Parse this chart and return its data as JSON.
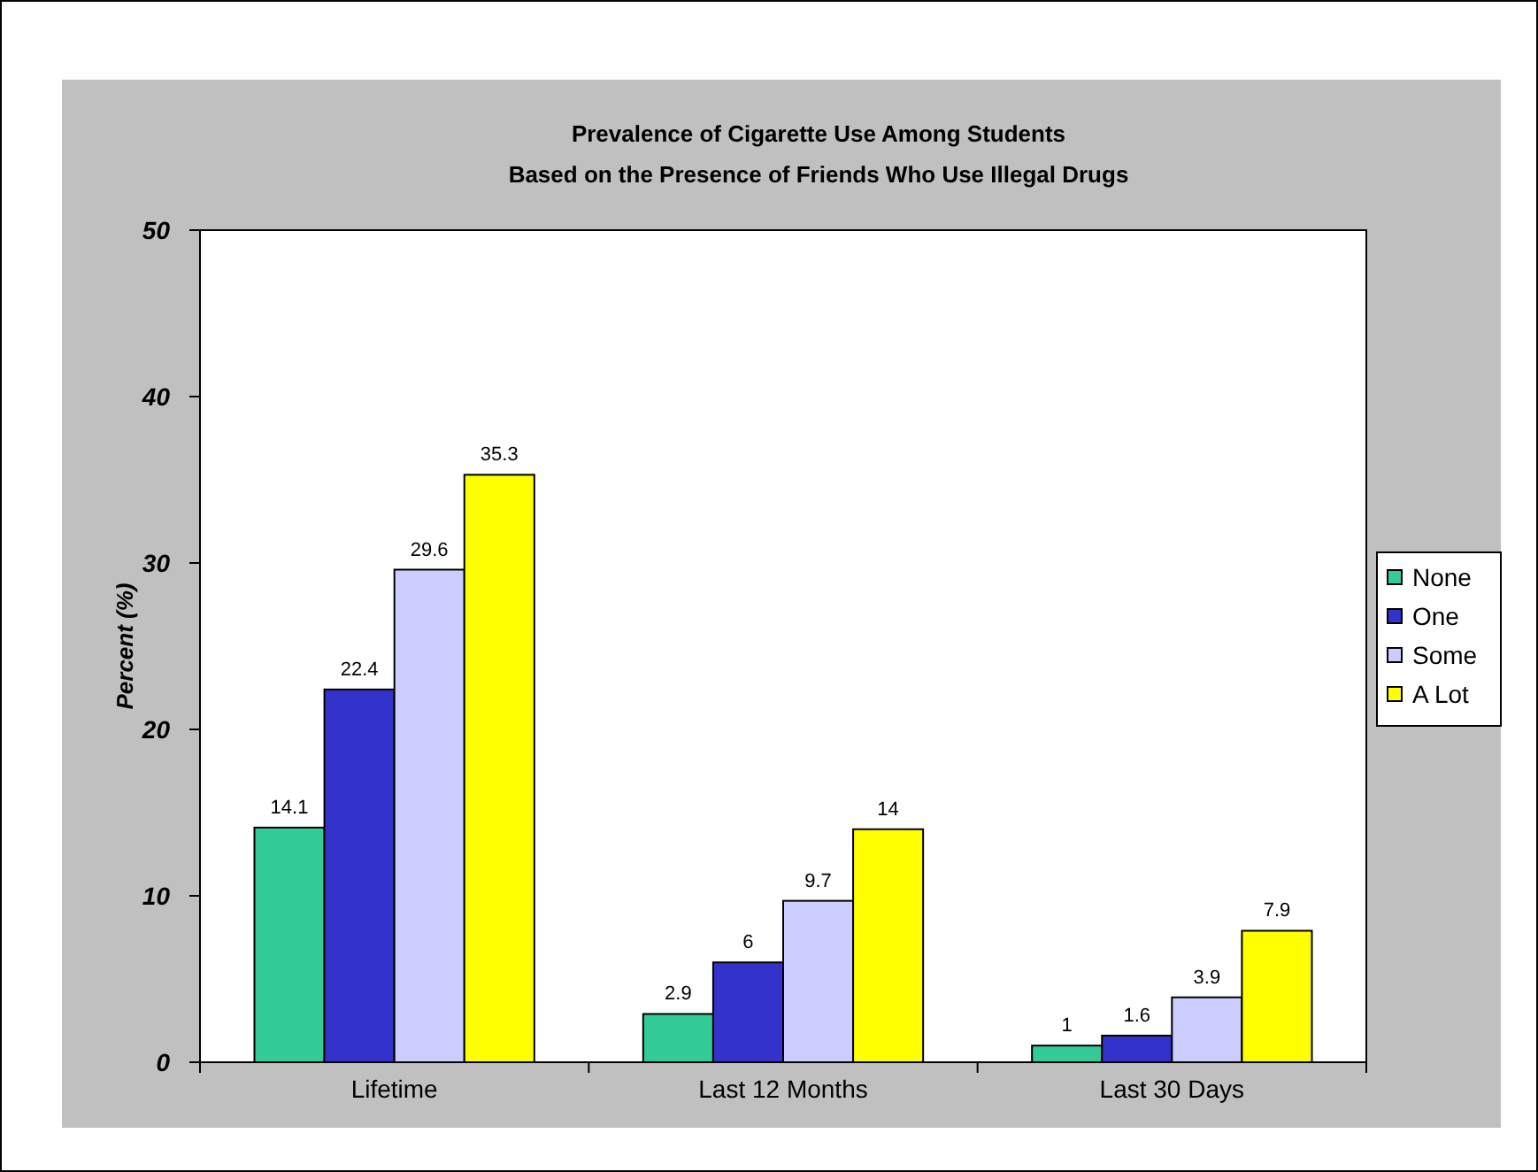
{
  "chart_data": {
    "type": "bar",
    "title": "Prevalence of Cigarette Use Among Students\nBased on the Presence of Friends Who Use Illegal Drugs",
    "ylabel": "Percent (%)",
    "categories": [
      "Lifetime",
      "Last 12 Months",
      "Last 30 Days"
    ],
    "series": [
      {
        "name": "None",
        "color": "#33cc99",
        "values": [
          14.1,
          2.9,
          1
        ]
      },
      {
        "name": "One",
        "color": "#3333cc",
        "values": [
          22.4,
          6,
          1.6
        ]
      },
      {
        "name": "Some",
        "color": "#ccccff",
        "values": [
          29.6,
          9.7,
          3.9
        ]
      },
      {
        "name": "A Lot",
        "color": "#ffff00",
        "values": [
          35.3,
          14,
          7.9
        ]
      }
    ],
    "ylim": [
      0,
      50
    ],
    "yticks": [
      0,
      10,
      20,
      30,
      40,
      50
    ],
    "grid": false,
    "legend": "right",
    "data_labels": true
  }
}
